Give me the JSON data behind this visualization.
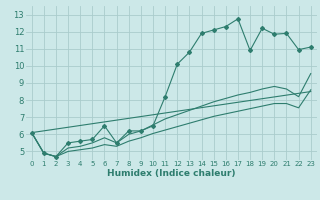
{
  "title": "",
  "xlabel": "Humidex (Indice chaleur)",
  "bg_color": "#cce8e8",
  "grid_color": "#aacccc",
  "line_color": "#2e7d6e",
  "xlim": [
    -0.5,
    23.5
  ],
  "ylim": [
    4.5,
    13.5
  ],
  "xticks": [
    0,
    1,
    2,
    3,
    4,
    5,
    6,
    7,
    8,
    9,
    10,
    11,
    12,
    13,
    14,
    15,
    16,
    17,
    18,
    19,
    20,
    21,
    22,
    23
  ],
  "yticks": [
    5,
    6,
    7,
    8,
    9,
    10,
    11,
    12,
    13
  ],
  "series": [
    {
      "x": [
        0,
        1,
        2,
        3,
        4,
        5,
        6,
        7,
        8,
        9,
        10,
        11,
        12,
        13,
        14,
        15,
        16,
        17,
        18,
        19,
        20,
        21,
        22,
        23
      ],
      "y": [
        6.1,
        4.9,
        4.7,
        5.5,
        5.6,
        5.7,
        6.5,
        5.5,
        6.2,
        6.2,
        6.5,
        8.2,
        10.1,
        10.8,
        11.9,
        12.1,
        12.3,
        12.75,
        10.9,
        12.2,
        11.85,
        11.9,
        10.95,
        11.1
      ],
      "marker": true,
      "linestyle": "-"
    },
    {
      "x": [
        0,
        1,
        2,
        3,
        4,
        5,
        6,
        7,
        8,
        9,
        10,
        11,
        12,
        13,
        14,
        15,
        16,
        17,
        18,
        19,
        20,
        21,
        22,
        23
      ],
      "y": [
        6.1,
        4.9,
        4.7,
        5.2,
        5.3,
        5.5,
        5.8,
        5.5,
        6.0,
        6.2,
        6.55,
        6.9,
        7.15,
        7.4,
        7.65,
        7.9,
        8.1,
        8.3,
        8.45,
        8.65,
        8.8,
        8.65,
        8.2,
        9.55
      ],
      "marker": false,
      "linestyle": "-"
    },
    {
      "x": [
        0,
        1,
        2,
        3,
        4,
        5,
        6,
        7,
        8,
        9,
        10,
        11,
        12,
        13,
        14,
        15,
        16,
        17,
        18,
        19,
        20,
        21,
        22,
        23
      ],
      "y": [
        6.1,
        4.9,
        4.7,
        5.0,
        5.1,
        5.2,
        5.4,
        5.3,
        5.6,
        5.8,
        6.05,
        6.25,
        6.45,
        6.65,
        6.85,
        7.05,
        7.2,
        7.35,
        7.5,
        7.65,
        7.8,
        7.8,
        7.55,
        8.6
      ],
      "marker": false,
      "linestyle": "-"
    },
    {
      "x": [
        0,
        23
      ],
      "y": [
        6.1,
        8.5
      ],
      "marker": false,
      "linestyle": "-"
    }
  ]
}
